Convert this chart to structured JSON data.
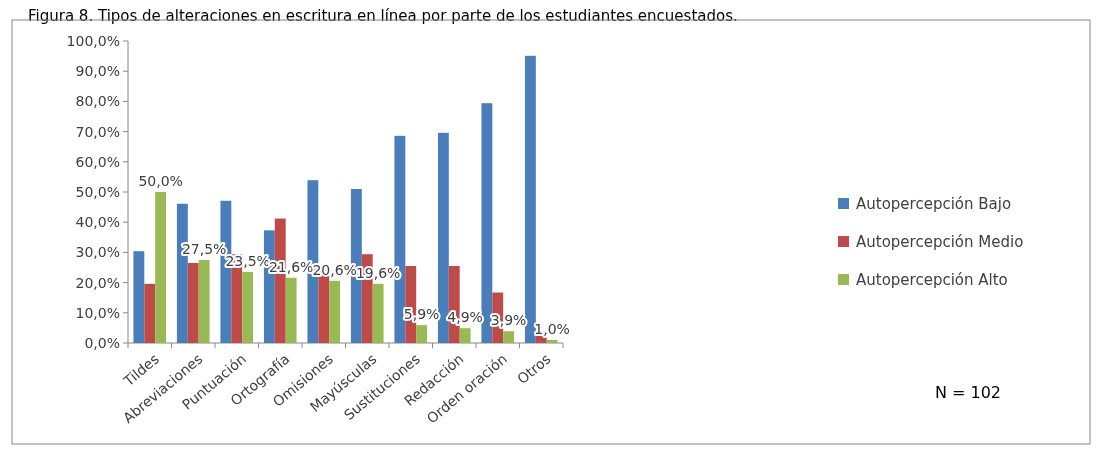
{
  "chart_data": {
    "type": "bar",
    "title": "Figura 8. Tipos de alteraciones en escritura en línea por parte de los estudiantes encuestados.",
    "categories": [
      "Tildes",
      "Abreviaciones",
      "Puntuación",
      "Ortografía",
      "Omisiones",
      "Mayúsculas",
      "Sustituciones",
      "Redacción",
      "Orden oración",
      "Otros"
    ],
    "series": [
      {
        "name": "Autopercepción Bajo",
        "color": "#4a7ebb",
        "values": [
          30.4,
          46.1,
          47.1,
          37.3,
          53.9,
          51.0,
          68.6,
          69.6,
          79.4,
          95.1
        ]
      },
      {
        "name": "Autopercepción Medio",
        "color": "#be4b48",
        "values": [
          19.6,
          26.5,
          29.4,
          41.2,
          25.5,
          29.4,
          25.5,
          25.5,
          16.7,
          3.9
        ]
      },
      {
        "name": "Autopercepción Alto",
        "color": "#98b954",
        "values": [
          50.0,
          27.5,
          23.5,
          21.6,
          20.6,
          19.6,
          5.9,
          4.9,
          3.9,
          1.0
        ],
        "value_labels": [
          "50,0%",
          "27,5%",
          "23,5%",
          "21,6%",
          "20,6%",
          "19,6%",
          "5,9%",
          "4,9%",
          "3,9%",
          "1,0%"
        ]
      }
    ],
    "ylim": [
      0,
      100
    ],
    "yticks": [
      {
        "value": 0,
        "label": "0,0%"
      },
      {
        "value": 10,
        "label": "10,0%"
      },
      {
        "value": 20,
        "label": "20,0%"
      },
      {
        "value": 30,
        "label": "30,0%"
      },
      {
        "value": 40,
        "label": "40,0%"
      },
      {
        "value": 50,
        "label": "50,0%"
      },
      {
        "value": 60,
        "label": "60,0%"
      },
      {
        "value": 70,
        "label": "70,0%"
      },
      {
        "value": 80,
        "label": "80,0%"
      },
      {
        "value": 90,
        "label": "90,0%"
      },
      {
        "value": 100,
        "label": "100,0%"
      }
    ],
    "legend": "right",
    "grid": false,
    "annotations": [
      "N = 102"
    ]
  }
}
